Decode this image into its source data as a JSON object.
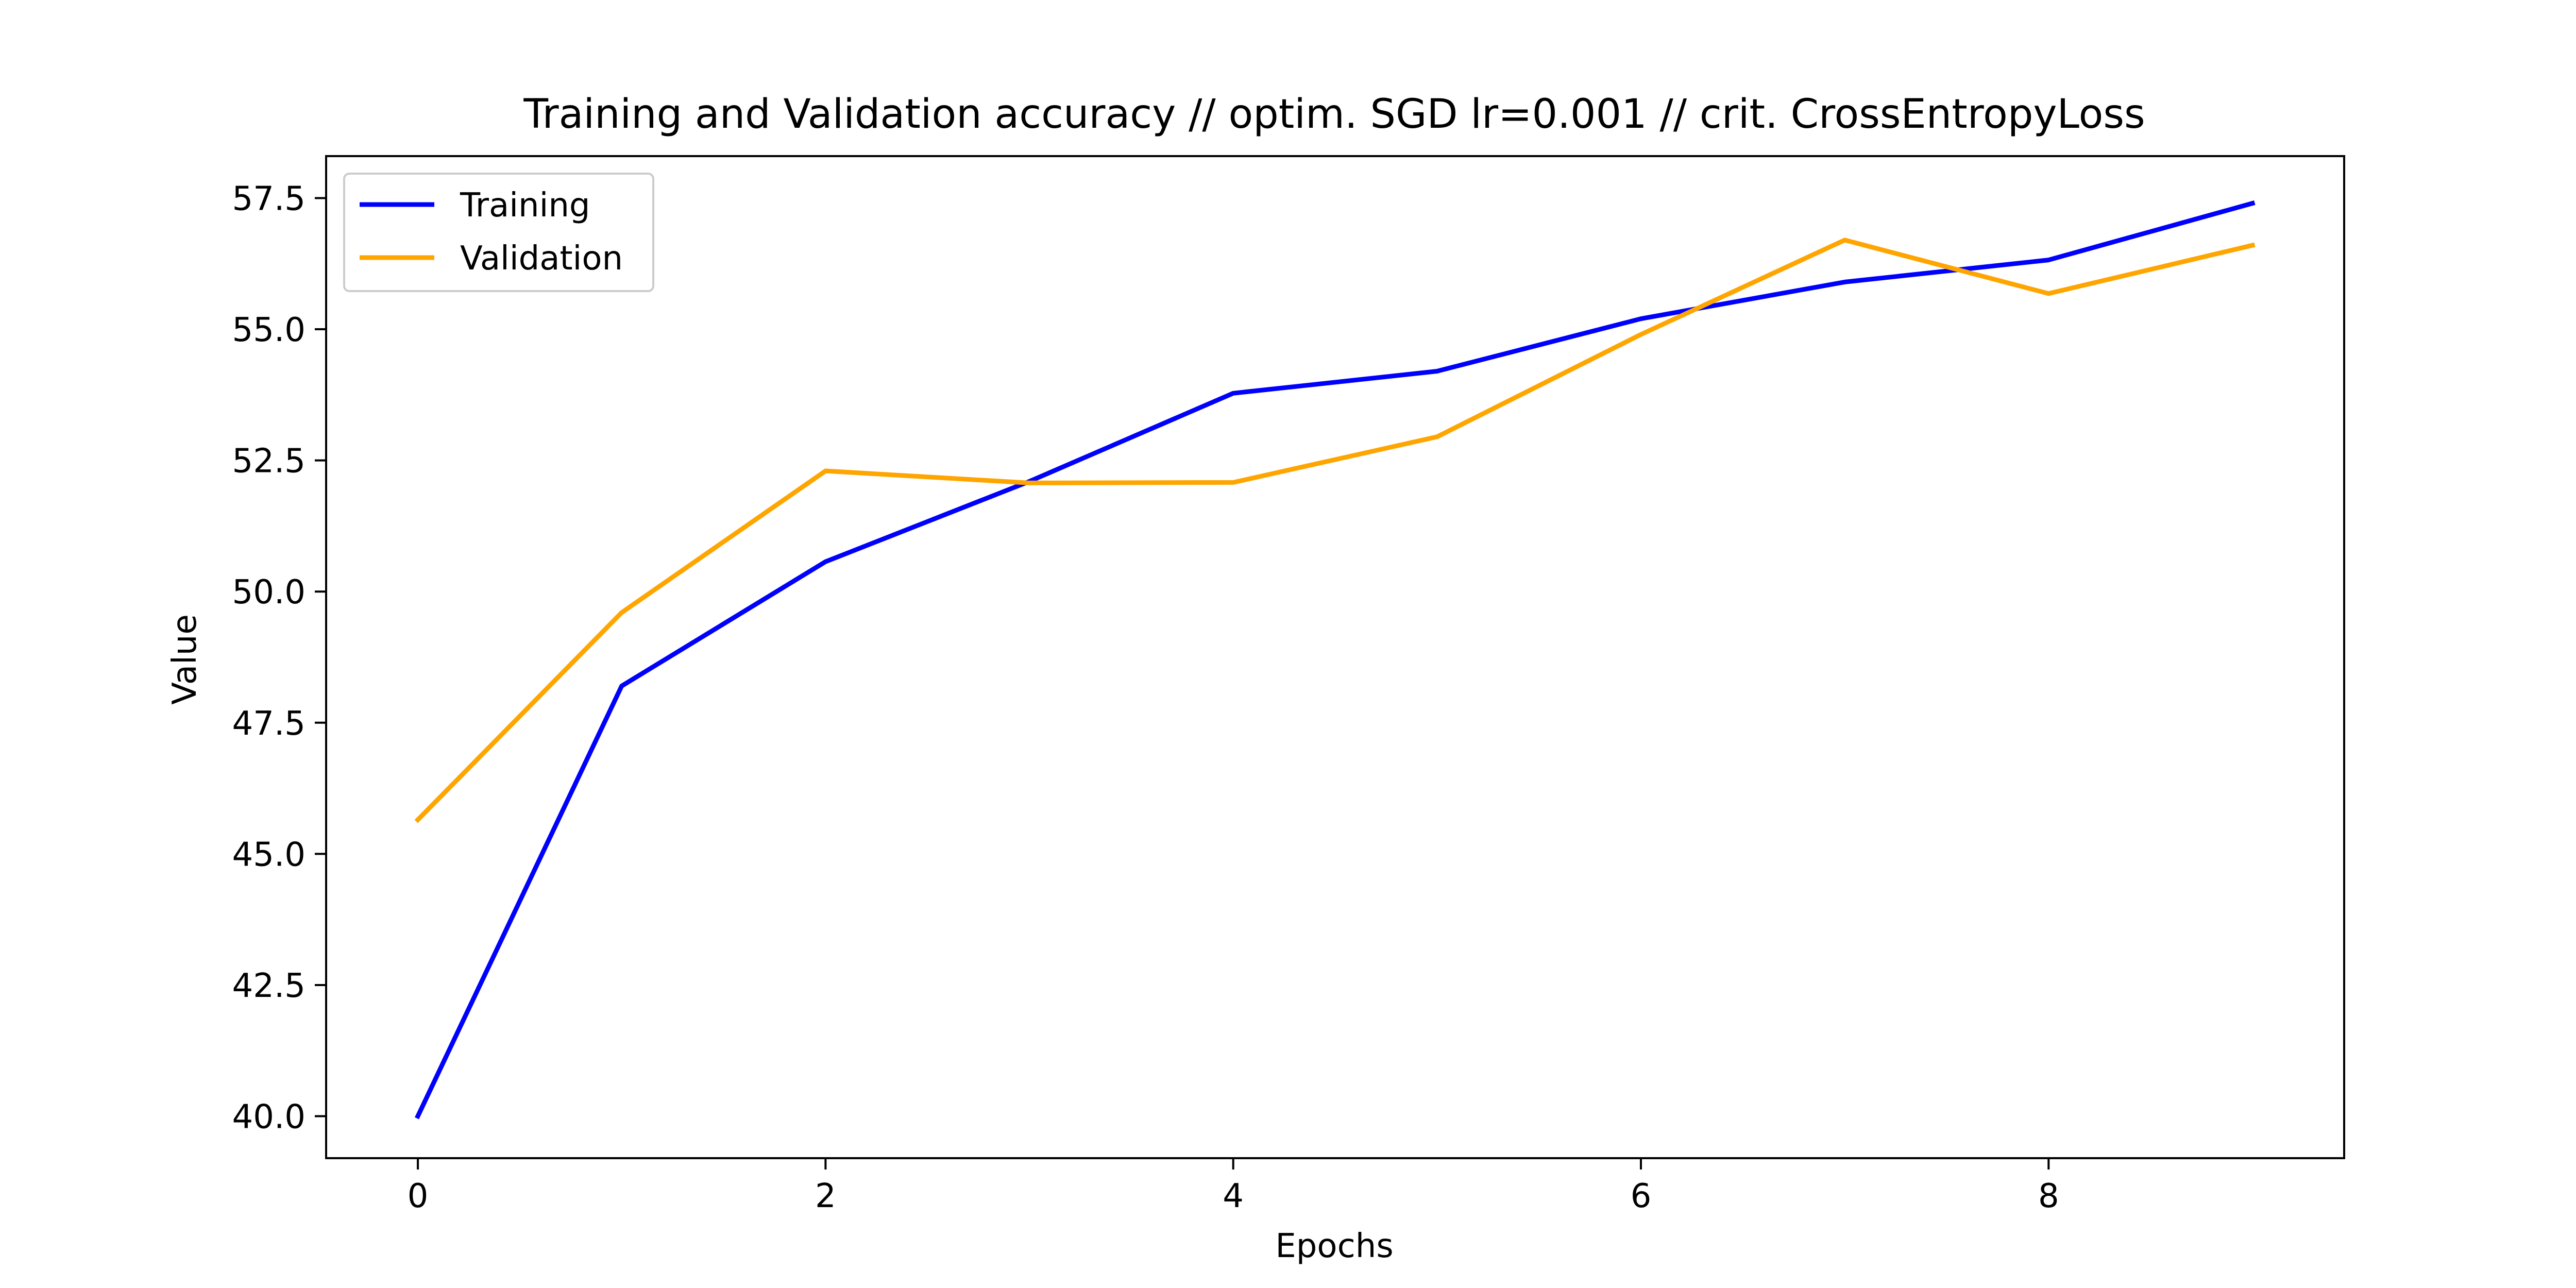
{
  "chart_data": {
    "type": "line",
    "title": "Training and Validation accuracy // optim. SGD lr=0.001 // crit. CrossEntropyLoss",
    "xlabel": "Epochs",
    "ylabel": "Value",
    "x": [
      0,
      1,
      2,
      3,
      4,
      5,
      6,
      7,
      8,
      9
    ],
    "xlim": [
      -0.45,
      9.45
    ],
    "ylim": [
      39.2,
      58.3
    ],
    "xticks": [
      0,
      2,
      4,
      6,
      8
    ],
    "xtick_labels": [
      "0",
      "2",
      "4",
      "6",
      "8"
    ],
    "yticks": [
      40.0,
      42.5,
      45.0,
      47.5,
      50.0,
      52.5,
      55.0,
      57.5
    ],
    "ytick_labels": [
      "40.0",
      "42.5",
      "45.0",
      "47.5",
      "50.0",
      "52.5",
      "55.0",
      "57.5"
    ],
    "grid": false,
    "legend_position": "upper-left",
    "series": [
      {
        "name": "Training",
        "color": "#0000ff",
        "values": [
          40.0,
          48.2,
          50.57,
          52.1,
          53.78,
          54.2,
          55.2,
          55.9,
          56.32,
          57.4
        ]
      },
      {
        "name": "Validation",
        "color": "#ffa500",
        "values": [
          45.65,
          49.6,
          52.3,
          52.07,
          52.08,
          52.95,
          54.9,
          56.7,
          55.68,
          56.6
        ]
      }
    ]
  }
}
